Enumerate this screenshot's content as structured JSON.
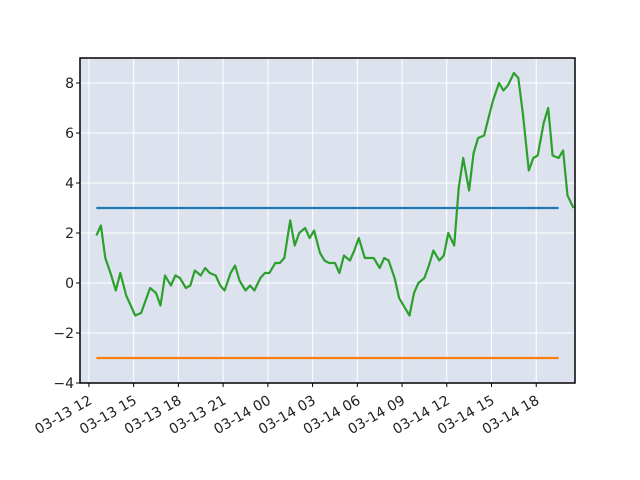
{
  "chart_data": {
    "type": "line",
    "title": "",
    "xlabel": "",
    "ylabel": "",
    "grid": true,
    "background": "#dde3ee",
    "x_ticks": [
      "03-13 12",
      "03-13 15",
      "03-13 18",
      "03-13 21",
      "03-14 00",
      "03-14 03",
      "03-14 06",
      "03-14 09",
      "03-14 12",
      "03-14 15",
      "03-14 18"
    ],
    "y_ticks": [
      "−4",
      "−2",
      "0",
      "2",
      "4",
      "6",
      "8"
    ],
    "xlim": [
      "2024-03-13 11:24",
      "2024-03-14 20:36"
    ],
    "ylim": [
      -4,
      9
    ],
    "series": [
      {
        "color": "#1f77b4",
        "points": [
          [
            "2024-03-13 12:30",
            3.0
          ],
          [
            "2024-03-14 19:30",
            3.0
          ]
        ]
      },
      {
        "color": "#ff7f0e",
        "points": [
          [
            "2024-03-13 12:30",
            -3.0
          ],
          [
            "2024-03-14 19:30",
            -3.0
          ]
        ]
      },
      {
        "color": "#2ca02c",
        "points": [
          [
            "2024-03-13 12:30",
            1.9
          ],
          [
            "2024-03-13 12:48",
            2.3
          ],
          [
            "2024-03-13 13:06",
            1.0
          ],
          [
            "2024-03-13 13:30",
            0.3
          ],
          [
            "2024-03-13 13:48",
            -0.3
          ],
          [
            "2024-03-13 14:06",
            0.4
          ],
          [
            "2024-03-13 14:30",
            -0.5
          ],
          [
            "2024-03-13 14:48",
            -0.9
          ],
          [
            "2024-03-13 15:06",
            -1.3
          ],
          [
            "2024-03-13 15:30",
            -1.2
          ],
          [
            "2024-03-13 15:48",
            -0.7
          ],
          [
            "2024-03-13 16:06",
            -0.2
          ],
          [
            "2024-03-13 16:30",
            -0.4
          ],
          [
            "2024-03-13 16:48",
            -0.9
          ],
          [
            "2024-03-13 17:06",
            0.3
          ],
          [
            "2024-03-13 17:30",
            -0.1
          ],
          [
            "2024-03-13 17:48",
            0.3
          ],
          [
            "2024-03-13 18:06",
            0.2
          ],
          [
            "2024-03-13 18:30",
            -0.2
          ],
          [
            "2024-03-13 18:48",
            -0.1
          ],
          [
            "2024-03-13 19:06",
            0.5
          ],
          [
            "2024-03-13 19:30",
            0.3
          ],
          [
            "2024-03-13 19:48",
            0.6
          ],
          [
            "2024-03-13 20:06",
            0.4
          ],
          [
            "2024-03-13 20:30",
            0.3
          ],
          [
            "2024-03-13 20:48",
            -0.1
          ],
          [
            "2024-03-13 21:06",
            -0.3
          ],
          [
            "2024-03-13 21:30",
            0.4
          ],
          [
            "2024-03-13 21:48",
            0.7
          ],
          [
            "2024-03-13 22:06",
            0.1
          ],
          [
            "2024-03-13 22:30",
            -0.3
          ],
          [
            "2024-03-13 22:48",
            -0.1
          ],
          [
            "2024-03-13 23:06",
            -0.3
          ],
          [
            "2024-03-13 23:30",
            0.2
          ],
          [
            "2024-03-13 23:48",
            0.4
          ],
          [
            "2024-03-14 00:06",
            0.4
          ],
          [
            "2024-03-14 00:30",
            0.8
          ],
          [
            "2024-03-14 00:48",
            0.8
          ],
          [
            "2024-03-14 01:06",
            1.0
          ],
          [
            "2024-03-14 01:30",
            2.5
          ],
          [
            "2024-03-14 01:48",
            1.5
          ],
          [
            "2024-03-14 02:06",
            2.0
          ],
          [
            "2024-03-14 02:30",
            2.2
          ],
          [
            "2024-03-14 02:48",
            1.8
          ],
          [
            "2024-03-14 03:06",
            2.1
          ],
          [
            "2024-03-14 03:30",
            1.2
          ],
          [
            "2024-03-14 03:48",
            0.9
          ],
          [
            "2024-03-14 04:06",
            0.8
          ],
          [
            "2024-03-14 04:30",
            0.8
          ],
          [
            "2024-03-14 04:48",
            0.4
          ],
          [
            "2024-03-14 05:06",
            1.1
          ],
          [
            "2024-03-14 05:30",
            0.9
          ],
          [
            "2024-03-14 05:48",
            1.3
          ],
          [
            "2024-03-14 06:06",
            1.8
          ],
          [
            "2024-03-14 06:30",
            1.0
          ],
          [
            "2024-03-14 06:48",
            1.0
          ],
          [
            "2024-03-14 07:06",
            1.0
          ],
          [
            "2024-03-14 07:30",
            0.6
          ],
          [
            "2024-03-14 07:48",
            1.0
          ],
          [
            "2024-03-14 08:06",
            0.9
          ],
          [
            "2024-03-14 08:30",
            0.2
          ],
          [
            "2024-03-14 08:48",
            -0.6
          ],
          [
            "2024-03-14 09:06",
            -0.9
          ],
          [
            "2024-03-14 09:30",
            -1.3
          ],
          [
            "2024-03-14 09:48",
            -0.4
          ],
          [
            "2024-03-14 10:06",
            0.0
          ],
          [
            "2024-03-14 10:30",
            0.2
          ],
          [
            "2024-03-14 10:48",
            0.7
          ],
          [
            "2024-03-14 11:06",
            1.3
          ],
          [
            "2024-03-14 11:30",
            0.9
          ],
          [
            "2024-03-14 11:48",
            1.1
          ],
          [
            "2024-03-14 12:06",
            2.0
          ],
          [
            "2024-03-14 12:30",
            1.5
          ],
          [
            "2024-03-14 12:48",
            3.8
          ],
          [
            "2024-03-14 13:06",
            5.0
          ],
          [
            "2024-03-14 13:30",
            3.7
          ],
          [
            "2024-03-14 13:48",
            5.2
          ],
          [
            "2024-03-14 14:06",
            5.8
          ],
          [
            "2024-03-14 14:30",
            5.9
          ],
          [
            "2024-03-14 14:48",
            6.6
          ],
          [
            "2024-03-14 15:06",
            7.3
          ],
          [
            "2024-03-14 15:30",
            8.0
          ],
          [
            "2024-03-14 15:48",
            7.7
          ],
          [
            "2024-03-14 16:06",
            7.9
          ],
          [
            "2024-03-14 16:30",
            8.4
          ],
          [
            "2024-03-14 16:48",
            8.2
          ],
          [
            "2024-03-14 17:06",
            6.8
          ],
          [
            "2024-03-14 17:30",
            4.5
          ],
          [
            "2024-03-14 17:48",
            5.0
          ],
          [
            "2024-03-14 18:06",
            5.1
          ],
          [
            "2024-03-14 18:30",
            6.4
          ],
          [
            "2024-03-14 18:48",
            7.0
          ],
          [
            "2024-03-14 19:06",
            5.1
          ],
          [
            "2024-03-14 19:30",
            5.0
          ],
          [
            "2024-03-14 19:48",
            5.3
          ],
          [
            "2024-03-14 20:06",
            3.5
          ],
          [
            "2024-03-14 20:30",
            3.0
          ]
        ]
      }
    ]
  }
}
